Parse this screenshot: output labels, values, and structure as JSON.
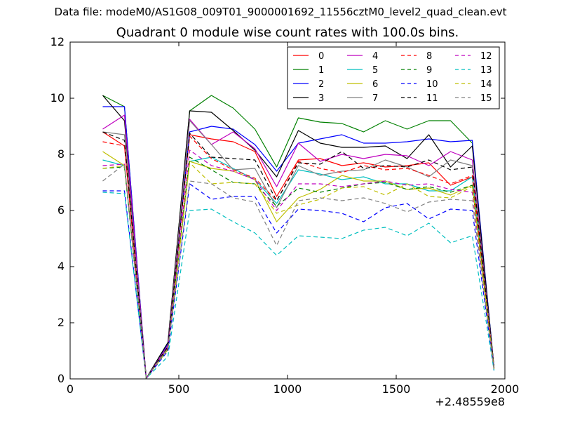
{
  "figure": {
    "suptitle": "Data file: modeM0/AS1G08_009T01_9000001692_11556cztM0_level2_quad_clean.evt"
  },
  "chart_data": {
    "type": "line",
    "title": "Quadrant 0 module wise count rates with 100.0s bins.",
    "xlabel": "",
    "ylabel": "",
    "x_offset_label": "+2.48559e8",
    "xlim": [
      0,
      2000
    ],
    "ylim": [
      0,
      12
    ],
    "xticks": [
      0,
      500,
      1000,
      1500,
      2000
    ],
    "yticks": [
      0,
      2,
      4,
      6,
      8,
      10,
      12
    ],
    "grid": false,
    "legend": {
      "placement": "top-right",
      "ncol": 4
    },
    "x": [
      150,
      250,
      350,
      450,
      550,
      650,
      750,
      850,
      950,
      1050,
      1150,
      1250,
      1350,
      1450,
      1550,
      1650,
      1750,
      1850,
      1950
    ],
    "series": [
      {
        "name": "0",
        "color": "#ff0000",
        "dash": "solid",
        "values": [
          8.8,
          8.3,
          0.02,
          1.2,
          8.7,
          8.55,
          8.45,
          8.1,
          6.5,
          7.8,
          7.85,
          7.6,
          7.7,
          7.55,
          7.6,
          7.7,
          6.9,
          7.2,
          0.4
        ]
      },
      {
        "name": "1",
        "color": "#008000",
        "dash": "solid",
        "values": [
          10.1,
          9.7,
          0.02,
          1.3,
          9.55,
          10.1,
          9.65,
          8.9,
          7.55,
          9.3,
          9.15,
          9.1,
          8.8,
          9.2,
          8.9,
          9.2,
          9.2,
          8.4,
          0.4
        ]
      },
      {
        "name": "2",
        "color": "#0000ff",
        "dash": "solid",
        "values": [
          9.7,
          9.7,
          0.02,
          1.25,
          8.8,
          9.0,
          8.9,
          8.35,
          7.4,
          8.4,
          8.55,
          8.7,
          8.4,
          8.4,
          8.45,
          8.55,
          8.45,
          8.5,
          0.4
        ]
      },
      {
        "name": "3",
        "color": "#000000",
        "dash": "solid",
        "values": [
          10.1,
          9.2,
          0.02,
          1.3,
          9.55,
          9.5,
          8.85,
          8.15,
          7.2,
          8.85,
          8.4,
          8.25,
          8.25,
          8.3,
          7.85,
          8.7,
          7.55,
          8.3,
          0.4
        ]
      },
      {
        "name": "4",
        "color": "#bf00bf",
        "dash": "solid",
        "values": [
          8.9,
          9.4,
          0.02,
          1.2,
          9.25,
          8.35,
          8.8,
          8.2,
          6.85,
          8.4,
          7.75,
          8.0,
          7.85,
          8.0,
          7.95,
          7.6,
          8.1,
          7.8,
          0.35
        ]
      },
      {
        "name": "5",
        "color": "#00bfbf",
        "dash": "solid",
        "values": [
          7.8,
          7.6,
          0.02,
          1.1,
          7.75,
          7.9,
          7.5,
          7.1,
          6.25,
          7.45,
          7.3,
          7.1,
          7.2,
          6.95,
          6.95,
          6.7,
          6.7,
          7.2,
          0.35
        ]
      },
      {
        "name": "6",
        "color": "#bfbf00",
        "dash": "solid",
        "values": [
          8.1,
          7.6,
          0.02,
          1.1,
          7.75,
          7.5,
          7.4,
          7.1,
          5.6,
          6.45,
          6.75,
          7.25,
          7.05,
          7.05,
          6.75,
          6.8,
          6.55,
          6.9,
          0.35
        ]
      },
      {
        "name": "7",
        "color": "#808080",
        "dash": "solid",
        "values": [
          8.8,
          8.7,
          0.02,
          1.15,
          9.2,
          8.35,
          7.45,
          7.5,
          6.1,
          7.6,
          7.25,
          7.4,
          7.45,
          7.8,
          7.55,
          7.2,
          7.8,
          7.6,
          0.35
        ]
      },
      {
        "name": "8",
        "color": "#ff0000",
        "dash": "dashed",
        "values": [
          8.45,
          8.3,
          0.02,
          1.1,
          8.65,
          7.85,
          7.45,
          7.15,
          6.35,
          7.75,
          7.5,
          7.35,
          7.6,
          7.45,
          7.5,
          7.25,
          6.95,
          7.25,
          0.35
        ]
      },
      {
        "name": "9",
        "color": "#008000",
        "dash": "dashed",
        "values": [
          7.5,
          7.55,
          0.02,
          1.05,
          7.9,
          7.45,
          7.0,
          6.95,
          6.15,
          6.8,
          6.65,
          6.8,
          6.95,
          7.0,
          6.75,
          6.85,
          6.65,
          6.9,
          0.35
        ]
      },
      {
        "name": "10",
        "color": "#0000ff",
        "dash": "dashed",
        "values": [
          6.7,
          6.7,
          0.02,
          1.0,
          6.95,
          6.4,
          6.5,
          6.5,
          5.2,
          6.05,
          6.0,
          5.9,
          5.6,
          6.1,
          6.25,
          5.7,
          6.05,
          6.0,
          0.3
        ]
      },
      {
        "name": "11",
        "color": "#000000",
        "dash": "dashed",
        "values": [
          8.8,
          8.5,
          0.02,
          1.15,
          8.75,
          7.9,
          7.85,
          7.8,
          6.35,
          7.7,
          7.65,
          8.1,
          7.5,
          7.6,
          7.55,
          7.8,
          7.45,
          7.55,
          0.35
        ]
      },
      {
        "name": "12",
        "color": "#bf00bf",
        "dash": "dashed",
        "values": [
          7.6,
          7.65,
          0.02,
          1.1,
          8.15,
          7.6,
          7.4,
          7.1,
          6.0,
          6.95,
          6.95,
          6.85,
          6.95,
          7.05,
          6.9,
          6.95,
          6.75,
          6.65,
          0.35
        ]
      },
      {
        "name": "13",
        "color": "#00bfbf",
        "dash": "dashed",
        "values": [
          6.65,
          6.6,
          0.02,
          0.8,
          6.0,
          6.05,
          5.6,
          5.2,
          4.4,
          5.1,
          5.05,
          5.0,
          5.3,
          5.4,
          5.1,
          5.55,
          4.85,
          5.1,
          0.3
        ]
      },
      {
        "name": "14",
        "color": "#bfbf00",
        "dash": "dashed",
        "values": [
          7.5,
          7.6,
          0.02,
          1.05,
          7.7,
          6.95,
          7.0,
          6.95,
          5.9,
          6.2,
          6.4,
          6.8,
          6.85,
          6.55,
          6.95,
          6.5,
          6.45,
          6.85,
          0.35
        ]
      },
      {
        "name": "15",
        "color": "#808080",
        "dash": "dashed",
        "values": [
          7.05,
          7.65,
          0.02,
          1.1,
          7.05,
          6.95,
          6.45,
          6.3,
          4.75,
          6.35,
          6.45,
          6.35,
          6.45,
          6.25,
          5.95,
          6.3,
          6.4,
          6.35,
          0.3
        ]
      }
    ]
  }
}
